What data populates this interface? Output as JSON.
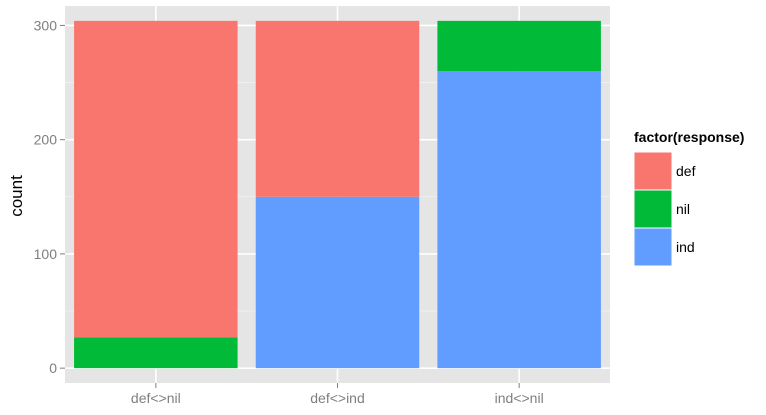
{
  "chart_data": {
    "type": "bar",
    "stacked": true,
    "categories": [
      "def<>nil",
      "def<>ind",
      "ind<>nil"
    ],
    "series": [
      {
        "name": "def",
        "color": "#F8766D",
        "values": [
          277,
          154,
          0
        ]
      },
      {
        "name": "nil",
        "color": "#00BA38",
        "values": [
          27,
          0,
          44
        ]
      },
      {
        "name": "ind",
        "color": "#619CFF",
        "values": [
          0,
          150,
          260
        ]
      }
    ],
    "xlabel": "",
    "ylabel": "count",
    "ylim": [
      -13,
      317
    ],
    "yticks": [
      0,
      100,
      200,
      300
    ],
    "grid": true,
    "legend": {
      "title": "factor(response)",
      "position": "right",
      "entries": [
        "def",
        "nil",
        "ind"
      ]
    },
    "panel_background": "#E5E5E5",
    "grid_color": "#FFFFFF"
  }
}
